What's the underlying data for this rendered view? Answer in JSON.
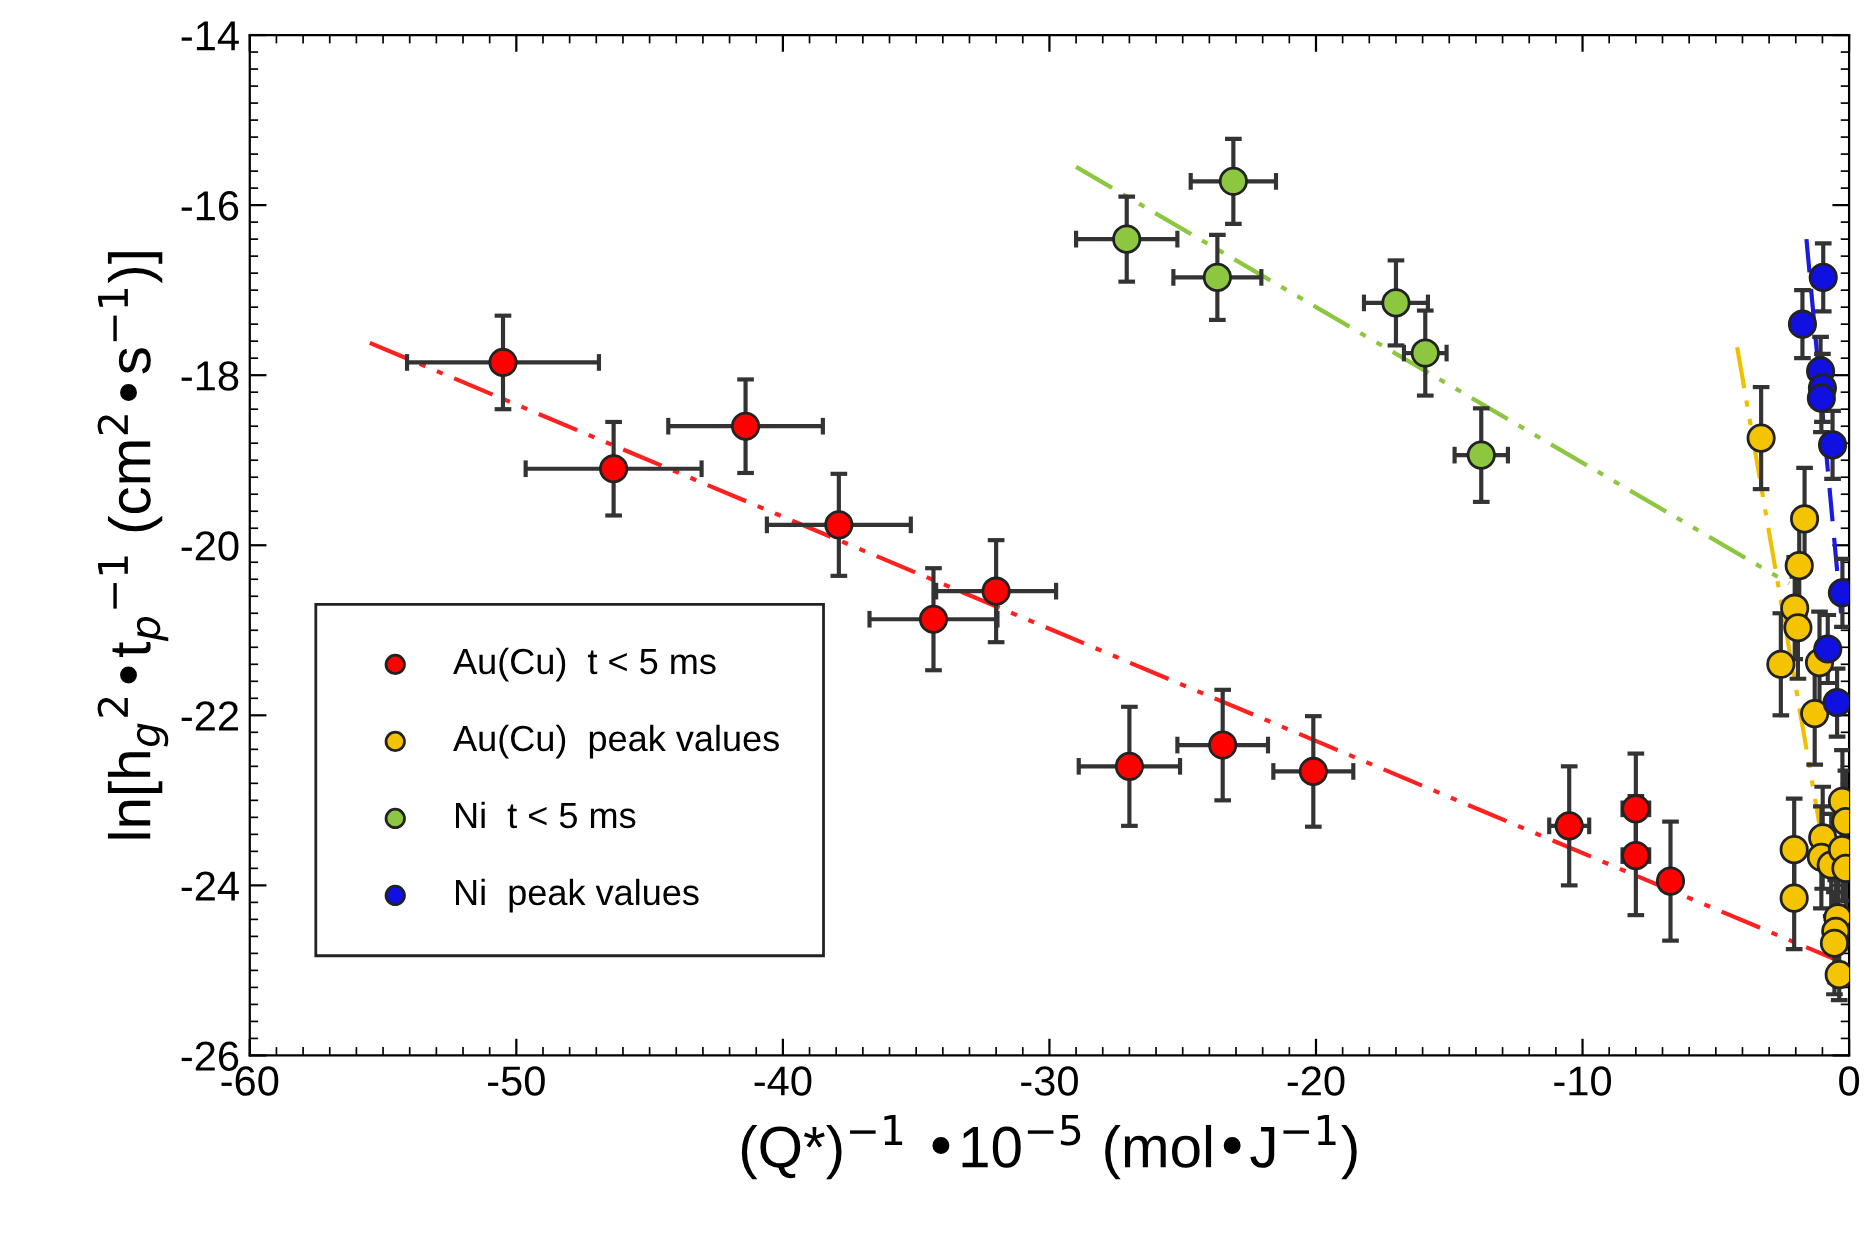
{
  "chart_data": {
    "type": "scatter",
    "xlabel": "(Q*)$^{−1}$ •10$^{−5}$ (mol•J$^{−1}$)",
    "ylabel": "ln[h$_{g}$$^{2}$•t$_{p}$$^{−1}$ (cm$^{2}$•s$^{−1}$)]",
    "xlim": [
      -60,
      0
    ],
    "ylim": [
      -26,
      -14
    ],
    "xticks": [
      -60,
      -50,
      -40,
      -30,
      -20,
      -10,
      0
    ],
    "yticks": [
      -26,
      -24,
      -22,
      -20,
      -18,
      -16,
      -14
    ],
    "grid": false,
    "legend": "bottom left",
    "marker": "circle",
    "series": [
      {
        "type": "line",
        "marker": "none",
        "color": "#ff2020",
        "line_style": "dashdotdot",
        "x": [
          -55.5,
          -0.3
        ],
        "values": [
          -17.62,
          -24.9
        ]
      },
      {
        "type": "line",
        "marker": "none",
        "color": "#8dc63f",
        "line_style": "dashdotdot",
        "x": [
          -29.0,
          -2.25
        ],
        "values": [
          -15.55,
          -20.45
        ]
      },
      {
        "type": "line",
        "marker": "none",
        "color": "#f0c000",
        "line_style": "dashdotdot",
        "x": [
          -4.2,
          -0.2
        ],
        "values": [
          -17.67,
          -24.94
        ]
      },
      {
        "type": "line",
        "marker": "none",
        "color": "#1a1ae0",
        "line_style": "dashed",
        "x": [
          -1.6,
          -0.3
        ],
        "values": [
          -16.4,
          -20.8
        ]
      },
      {
        "name": "Au(Cu)  t < 5 ms",
        "color": "#ff0000",
        "x": [
          -50.5,
          -46.35,
          -41.4,
          -37.9,
          -34.35,
          -32.0,
          -27.0,
          -23.5,
          -20.1,
          -10.5,
          -8.0,
          -8.0,
          -6.7
        ],
        "values": [
          -17.85,
          -19.1,
          -18.6,
          -19.76,
          -20.87,
          -20.54,
          -22.6,
          -22.35,
          -22.66,
          -23.3,
          -23.1,
          -23.65,
          -23.95
        ],
        "xerrors": [
          3.6,
          3.3,
          2.9,
          2.7,
          2.4,
          2.25,
          1.9,
          1.7,
          1.5,
          0.75,
          0.5,
          0.5,
          0.3
        ],
        "errors": [
          0.55,
          0.55,
          0.55,
          0.6,
          0.6,
          0.6,
          0.7,
          0.65,
          0.65,
          0.7,
          0.65,
          0.7,
          0.7
        ]
      },
      {
        "name": "Au(Cu)  peak values",
        "color": "#f5c400",
        "x": [
          -3.3,
          -1.67,
          -1.87,
          -2.04,
          -1.92,
          -2.56,
          -1.11,
          -1.29,
          -2.06,
          -0.99,
          -1.04,
          -0.67,
          -0.25,
          -0.12,
          -0.25,
          -0.12,
          -2.06,
          -0.42,
          -0.5,
          -0.55,
          -0.37
        ],
        "values": [
          -18.74,
          -19.69,
          -20.24,
          -20.74,
          -20.97,
          -21.4,
          -21.38,
          -21.98,
          -23.58,
          -23.44,
          -23.67,
          -23.76,
          -23.01,
          -23.25,
          -23.58,
          -23.8,
          -24.15,
          -24.38,
          -24.54,
          -24.68,
          -25.05
        ],
        "errors": [
          0.6,
          0.6,
          0.6,
          0.6,
          0.6,
          0.6,
          0.6,
          0.6,
          0.6,
          0.6,
          0.6,
          0.6,
          0.6,
          0.6,
          0.6,
          0.6,
          0.6,
          0.6,
          0.6,
          0.6,
          0.3
        ]
      },
      {
        "name": "Ni  t < 5 ms",
        "color": "#8dc63f",
        "x": [
          -27.1,
          -23.1,
          -23.7,
          -17.0,
          -15.9,
          -13.8
        ],
        "values": [
          -16.4,
          -15.72,
          -16.85,
          -17.15,
          -17.74,
          -18.94
        ],
        "xerrors": [
          1.9,
          1.6,
          1.65,
          1.2,
          0.8,
          1.0
        ],
        "errors": [
          0.5,
          0.5,
          0.5,
          0.5,
          0.5,
          0.55
        ]
      },
      {
        "name": "Ni  peak values",
        "color": "#1010e0",
        "x": [
          -0.97,
          -1.75,
          -1.07,
          -1.0,
          -1.04,
          -0.62,
          -0.25,
          -0.8,
          -0.45
        ],
        "values": [
          -16.85,
          -17.4,
          -17.95,
          -18.15,
          -18.27,
          -18.82,
          -20.56,
          -21.22,
          -21.85
        ],
        "errors": [
          0.4,
          0.4,
          0.4,
          0.4,
          0.4,
          0.4,
          0.4,
          0.4,
          0.4
        ]
      }
    ]
  }
}
